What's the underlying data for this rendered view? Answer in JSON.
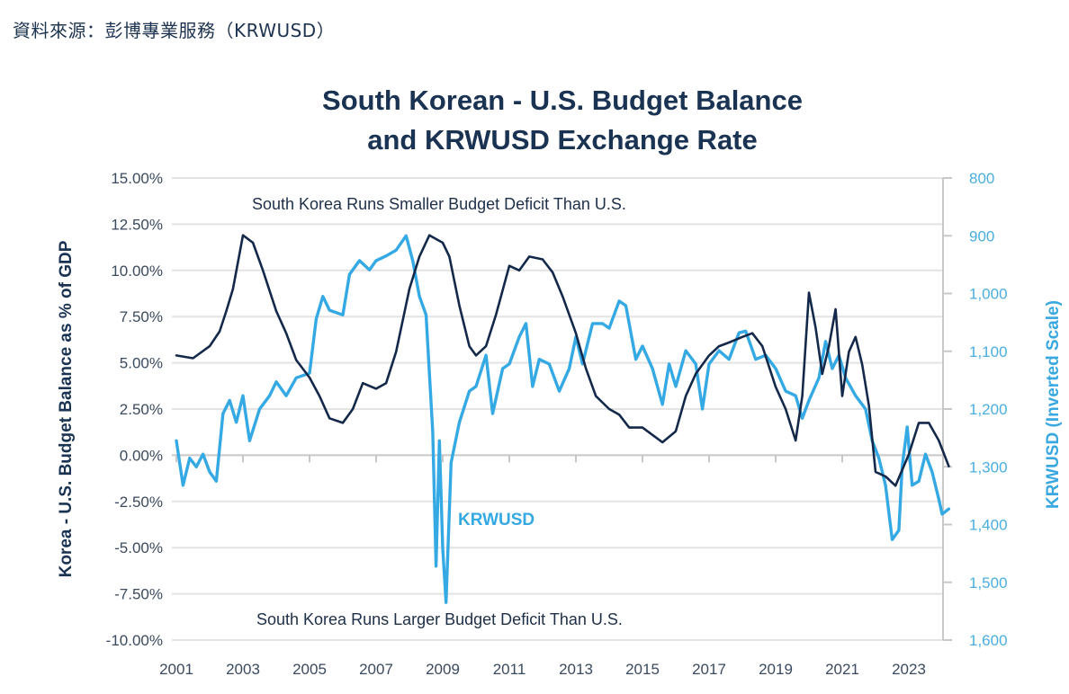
{
  "source_note": "資料來源：彭博專業服務（KRWUSD）",
  "chart_data": {
    "type": "line",
    "title_lines": [
      "South Korean - U.S. Budget Balance",
      "and KRWUSD Exchange Rate"
    ],
    "ylabel_left": "Korea - U.S. Budget Balance as % of GDP",
    "ylabel_right": "KRWUSD (Inverted Scale)",
    "xlabel": "",
    "xlim": [
      2001,
      2024.3
    ],
    "ylim_left": [
      -10,
      15
    ],
    "ylim_right": [
      800,
      1600
    ],
    "right_axis_inverted": true,
    "grid": true,
    "x_ticks": [
      "2001",
      "2003",
      "2005",
      "2007",
      "2009",
      "2011",
      "2013",
      "2015",
      "2017",
      "2019",
      "2021",
      "2023"
    ],
    "y_ticks_left": [
      "15.00%",
      "12.50%",
      "10.00%",
      "7.50%",
      "5.00%",
      "2.50%",
      "0.00%",
      "-2.50%",
      "-5.00%",
      "-7.50%",
      "-10.00%"
    ],
    "y_tick_values_left": [
      15,
      12.5,
      10,
      7.5,
      5,
      2.5,
      0,
      -2.5,
      -5,
      -7.5,
      -10
    ],
    "y_ticks_right": [
      "800",
      "900",
      "1,000",
      "1,100",
      "1,200",
      "1,300",
      "1,400",
      "1,500",
      "1,600"
    ],
    "y_tick_values_right": [
      800,
      900,
      1000,
      1100,
      1200,
      1300,
      1400,
      1500,
      1600
    ],
    "annotations": {
      "top": "South Korea Runs Smaller Budget Deficit Than U.S.",
      "bottom": "South Korea Runs Larger Budget Deficit Than U.S.",
      "series_label": "KRWUSD"
    },
    "colors": {
      "balance": "#14294a",
      "krwusd": "#35a9e3",
      "grid": "#e3e3e3",
      "axis": "#c8c8c8"
    },
    "series": [
      {
        "name": "Korea - U.S. Budget Balance (% of GDP)",
        "axis": "left",
        "x": [
          2001.0,
          2001.5,
          2002.0,
          2002.3,
          2002.5,
          2002.7,
          2003.0,
          2003.3,
          2003.6,
          2004.0,
          2004.3,
          2004.6,
          2005.0,
          2005.3,
          2005.6,
          2006.0,
          2006.3,
          2006.6,
          2007.0,
          2007.3,
          2007.6,
          2008.0,
          2008.3,
          2008.6,
          2009.0,
          2009.2,
          2009.5,
          2009.8,
          2010.0,
          2010.3,
          2010.6,
          2011.0,
          2011.3,
          2011.6,
          2012.0,
          2012.3,
          2012.6,
          2013.0,
          2013.3,
          2013.6,
          2014.0,
          2014.3,
          2014.6,
          2015.0,
          2015.3,
          2015.6,
          2016.0,
          2016.3,
          2016.6,
          2017.0,
          2017.3,
          2017.6,
          2018.0,
          2018.3,
          2018.6,
          2019.0,
          2019.3,
          2019.6,
          2019.8,
          2020.0,
          2020.2,
          2020.4,
          2020.6,
          2020.8,
          2021.0,
          2021.2,
          2021.4,
          2021.6,
          2021.8,
          2022.0,
          2022.3,
          2022.6,
          2023.0,
          2023.3,
          2023.6,
          2023.9,
          2024.2
        ],
        "values": [
          5.4,
          5.25,
          5.9,
          6.7,
          7.8,
          9.0,
          11.9,
          11.5,
          10.0,
          7.8,
          6.6,
          5.15,
          4.2,
          3.2,
          2.0,
          1.75,
          2.5,
          3.9,
          3.6,
          3.9,
          5.6,
          9.0,
          10.75,
          11.9,
          11.5,
          10.75,
          8.1,
          5.9,
          5.4,
          5.9,
          7.6,
          10.25,
          10.0,
          10.75,
          10.6,
          9.9,
          8.6,
          6.6,
          4.7,
          3.2,
          2.5,
          2.2,
          1.5,
          1.5,
          1.1,
          0.7,
          1.3,
          3.2,
          4.4,
          5.4,
          5.9,
          6.1,
          6.4,
          6.6,
          5.9,
          3.7,
          2.5,
          0.8,
          3.2,
          8.8,
          6.9,
          4.4,
          5.9,
          7.9,
          3.2,
          5.6,
          6.4,
          4.9,
          2.7,
          -0.9,
          -1.15,
          -1.65,
          0.05,
          1.75,
          1.75,
          0.8,
          -0.6
        ]
      },
      {
        "name": "KRWUSD",
        "axis": "right",
        "x": [
          2001.0,
          2001.2,
          2001.4,
          2001.6,
          2001.8,
          2002.0,
          2002.2,
          2002.4,
          2002.6,
          2002.8,
          2003.0,
          2003.2,
          2003.5,
          2003.8,
          2004.0,
          2004.3,
          2004.6,
          2005.0,
          2005.2,
          2005.4,
          2005.6,
          2006.0,
          2006.2,
          2006.5,
          2006.8,
          2007.0,
          2007.3,
          2007.6,
          2007.9,
          2008.1,
          2008.3,
          2008.5,
          2008.7,
          2008.8,
          2008.9,
          2009.0,
          2009.1,
          2009.25,
          2009.5,
          2009.8,
          2010.0,
          2010.3,
          2010.5,
          2010.8,
          2011.0,
          2011.3,
          2011.5,
          2011.7,
          2011.9,
          2012.2,
          2012.5,
          2012.8,
          2013.0,
          2013.2,
          2013.5,
          2013.8,
          2014.0,
          2014.3,
          2014.5,
          2014.8,
          2015.0,
          2015.3,
          2015.6,
          2015.8,
          2016.0,
          2016.3,
          2016.6,
          2016.8,
          2017.0,
          2017.3,
          2017.6,
          2017.9,
          2018.1,
          2018.4,
          2018.7,
          2019.0,
          2019.3,
          2019.6,
          2019.8,
          2020.0,
          2020.3,
          2020.5,
          2020.7,
          2020.9,
          2021.1,
          2021.4,
          2021.7,
          2021.9,
          2022.1,
          2022.3,
          2022.5,
          2022.7,
          2022.8,
          2022.95,
          2023.1,
          2023.3,
          2023.5,
          2023.7,
          2023.9,
          2024.0,
          2024.2
        ],
        "values": [
          1255,
          1332,
          1285,
          1300,
          1278,
          1309,
          1325,
          1208,
          1185,
          1223,
          1177,
          1255,
          1200,
          1177,
          1153,
          1177,
          1146,
          1138,
          1044,
          1005,
          1029,
          1037,
          967,
          943,
          959,
          943,
          935,
          925,
          900,
          943,
          1005,
          1037,
          1239,
          1472,
          1255,
          1441,
          1535,
          1293,
          1223,
          1169,
          1161,
          1107,
          1208,
          1130,
          1122,
          1075,
          1052,
          1161,
          1114,
          1122,
          1169,
          1130,
          1075,
          1122,
          1052,
          1052,
          1060,
          1013,
          1021,
          1114,
          1091,
          1130,
          1192,
          1122,
          1161,
          1099,
          1122,
          1200,
          1122,
          1099,
          1114,
          1068,
          1065,
          1114,
          1107,
          1130,
          1169,
          1177,
          1216,
          1185,
          1146,
          1083,
          1130,
          1107,
          1146,
          1177,
          1200,
          1255,
          1285,
          1332,
          1426,
          1410,
          1300,
          1231,
          1332,
          1325,
          1278,
          1309,
          1356,
          1382,
          1373
        ]
      }
    ]
  }
}
